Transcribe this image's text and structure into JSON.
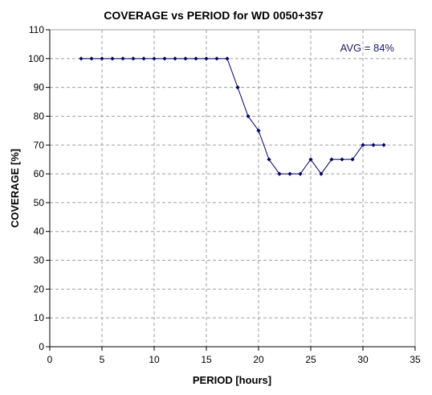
{
  "chart_data": {
    "type": "line",
    "title": "COVERAGE vs PERIOD for WD 0050+357",
    "xlabel": "PERIOD [hours]",
    "ylabel": "COVERAGE [%]",
    "xlim": [
      0,
      35
    ],
    "ylim": [
      0,
      110
    ],
    "x_ticks": [
      0,
      5,
      10,
      15,
      20,
      25,
      30,
      35
    ],
    "y_ticks": [
      0,
      10,
      20,
      30,
      40,
      50,
      60,
      70,
      80,
      90,
      100,
      110
    ],
    "grid": true,
    "annotation": "AVG = 84%",
    "colors": {
      "line": "#000066",
      "marker": "#000066",
      "annotation": "#1a1a66",
      "grid": "#a0a0a0"
    },
    "series": [
      {
        "x": [
          3,
          4,
          5,
          6,
          7,
          8,
          9,
          10,
          11,
          12,
          13,
          14,
          15,
          16,
          17,
          18,
          19,
          20,
          21,
          22,
          23,
          24,
          25,
          26,
          27,
          28,
          29,
          30,
          31,
          32
        ],
        "y": [
          100,
          100,
          100,
          100,
          100,
          100,
          100,
          100,
          100,
          100,
          100,
          100,
          100,
          100,
          100,
          90,
          80,
          75,
          65,
          60,
          60,
          60,
          65,
          60,
          65,
          65,
          65,
          70,
          70,
          70
        ]
      }
    ]
  }
}
